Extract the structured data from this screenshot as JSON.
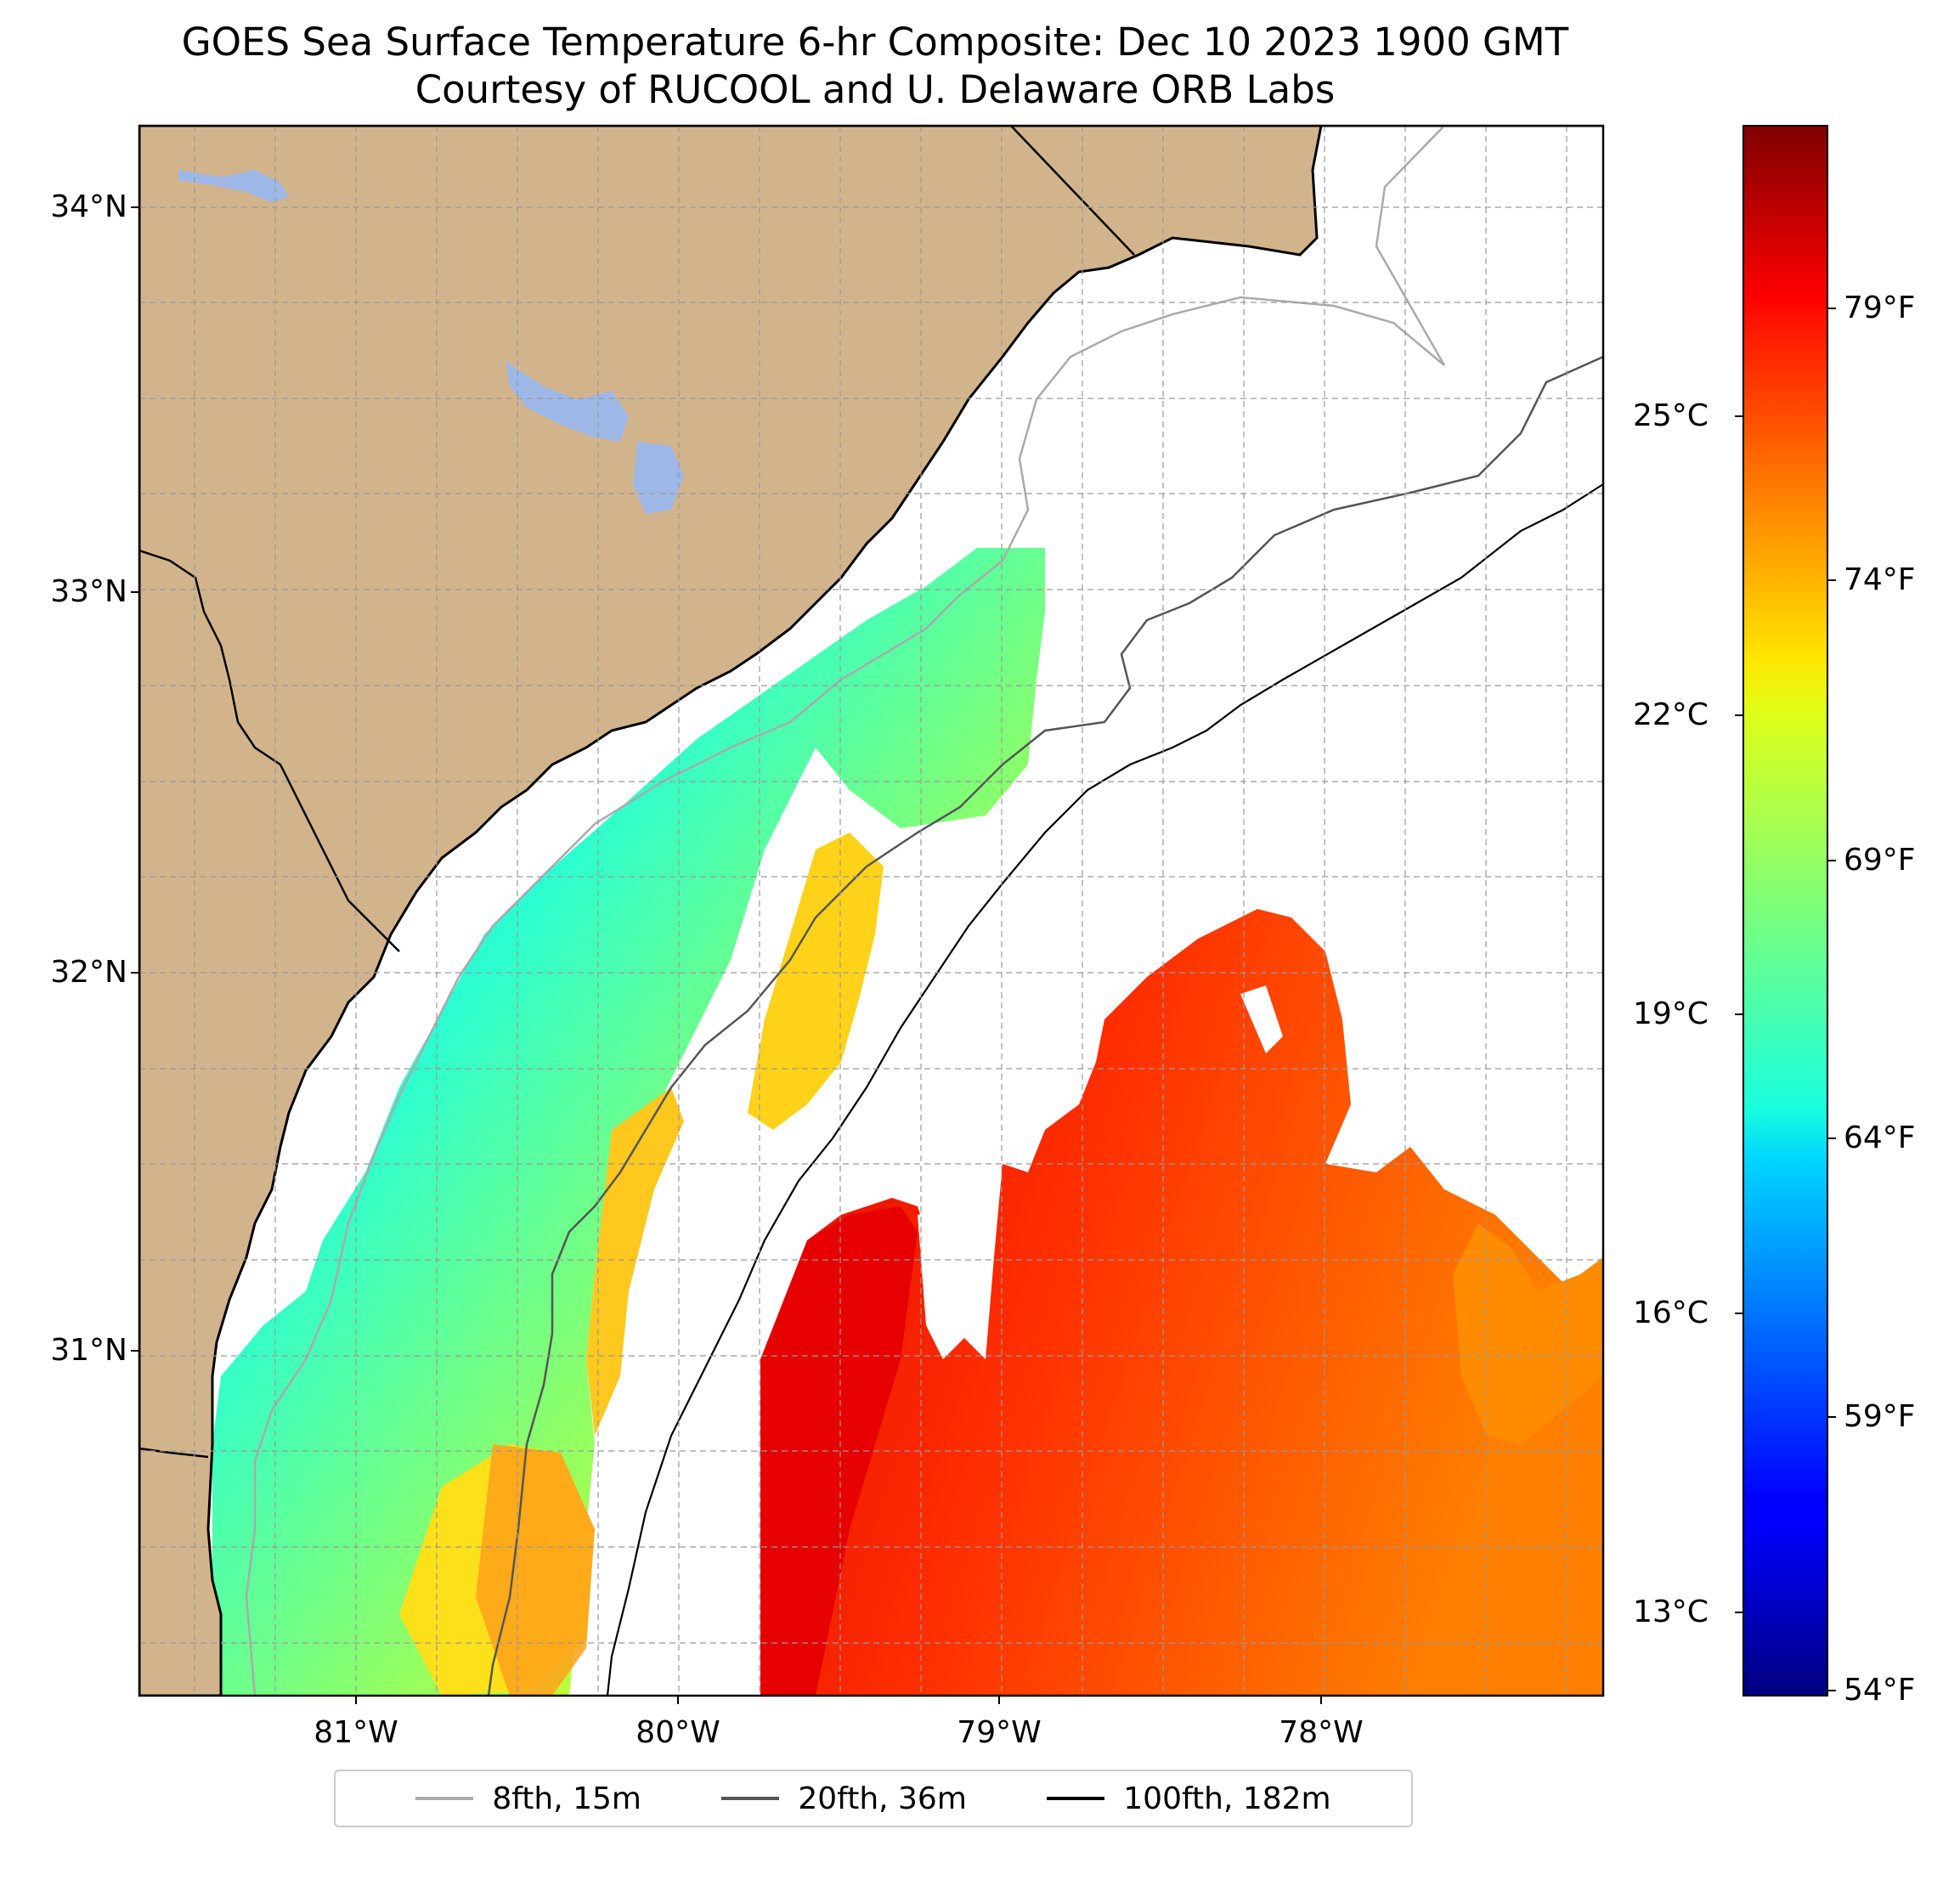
{
  "title": {
    "line1": "GOES Sea Surface Temperature 6-hr Composite: Dec 10 2023 1900 GMT",
    "line2": "Courtesy of RUCOOL and U. Delaware ORB Labs"
  },
  "map": {
    "lon_range": [
      -81.68,
      -77.13
    ],
    "lat_range": [
      30.07,
      34.22
    ],
    "land_color": "#d2b48c",
    "lake_color": "#9db8e6",
    "lat_ticks": [
      {
        "value": 34,
        "label": "34°N"
      },
      {
        "value": 33,
        "label": "33°N"
      },
      {
        "value": 32,
        "label": "32°N"
      },
      {
        "value": 31,
        "label": "31°N"
      }
    ],
    "lon_ticks": [
      {
        "value": -81,
        "label": "81°W"
      },
      {
        "value": -80,
        "label": "80°W"
      },
      {
        "value": -79,
        "label": "79°W"
      },
      {
        "value": -78,
        "label": "78°W"
      }
    ]
  },
  "colorbar": {
    "colormap": "jet",
    "min_f": 54,
    "max_f": 83,
    "celsius_ticks": [
      {
        "value": 25,
        "label": "25°C"
      },
      {
        "value": 22,
        "label": "22°C"
      },
      {
        "value": 19,
        "label": "19°C"
      },
      {
        "value": 16,
        "label": "16°C"
      },
      {
        "value": 13,
        "label": "13°C"
      }
    ],
    "fahrenheit_ticks": [
      {
        "value": 79,
        "label": "79°F"
      },
      {
        "value": 74,
        "label": "74°F"
      },
      {
        "value": 69,
        "label": "69°F"
      },
      {
        "value": 64,
        "label": "64°F"
      },
      {
        "value": 59,
        "label": "59°F"
      },
      {
        "value": 54,
        "label": "54°F"
      }
    ]
  },
  "legend": {
    "items": [
      {
        "label": "8fth, 15m",
        "color": "#aaaaaa"
      },
      {
        "label": "20fth, 36m",
        "color": "#555555"
      },
      {
        "label": "100fth, 182m",
        "color": "#000000"
      }
    ]
  }
}
